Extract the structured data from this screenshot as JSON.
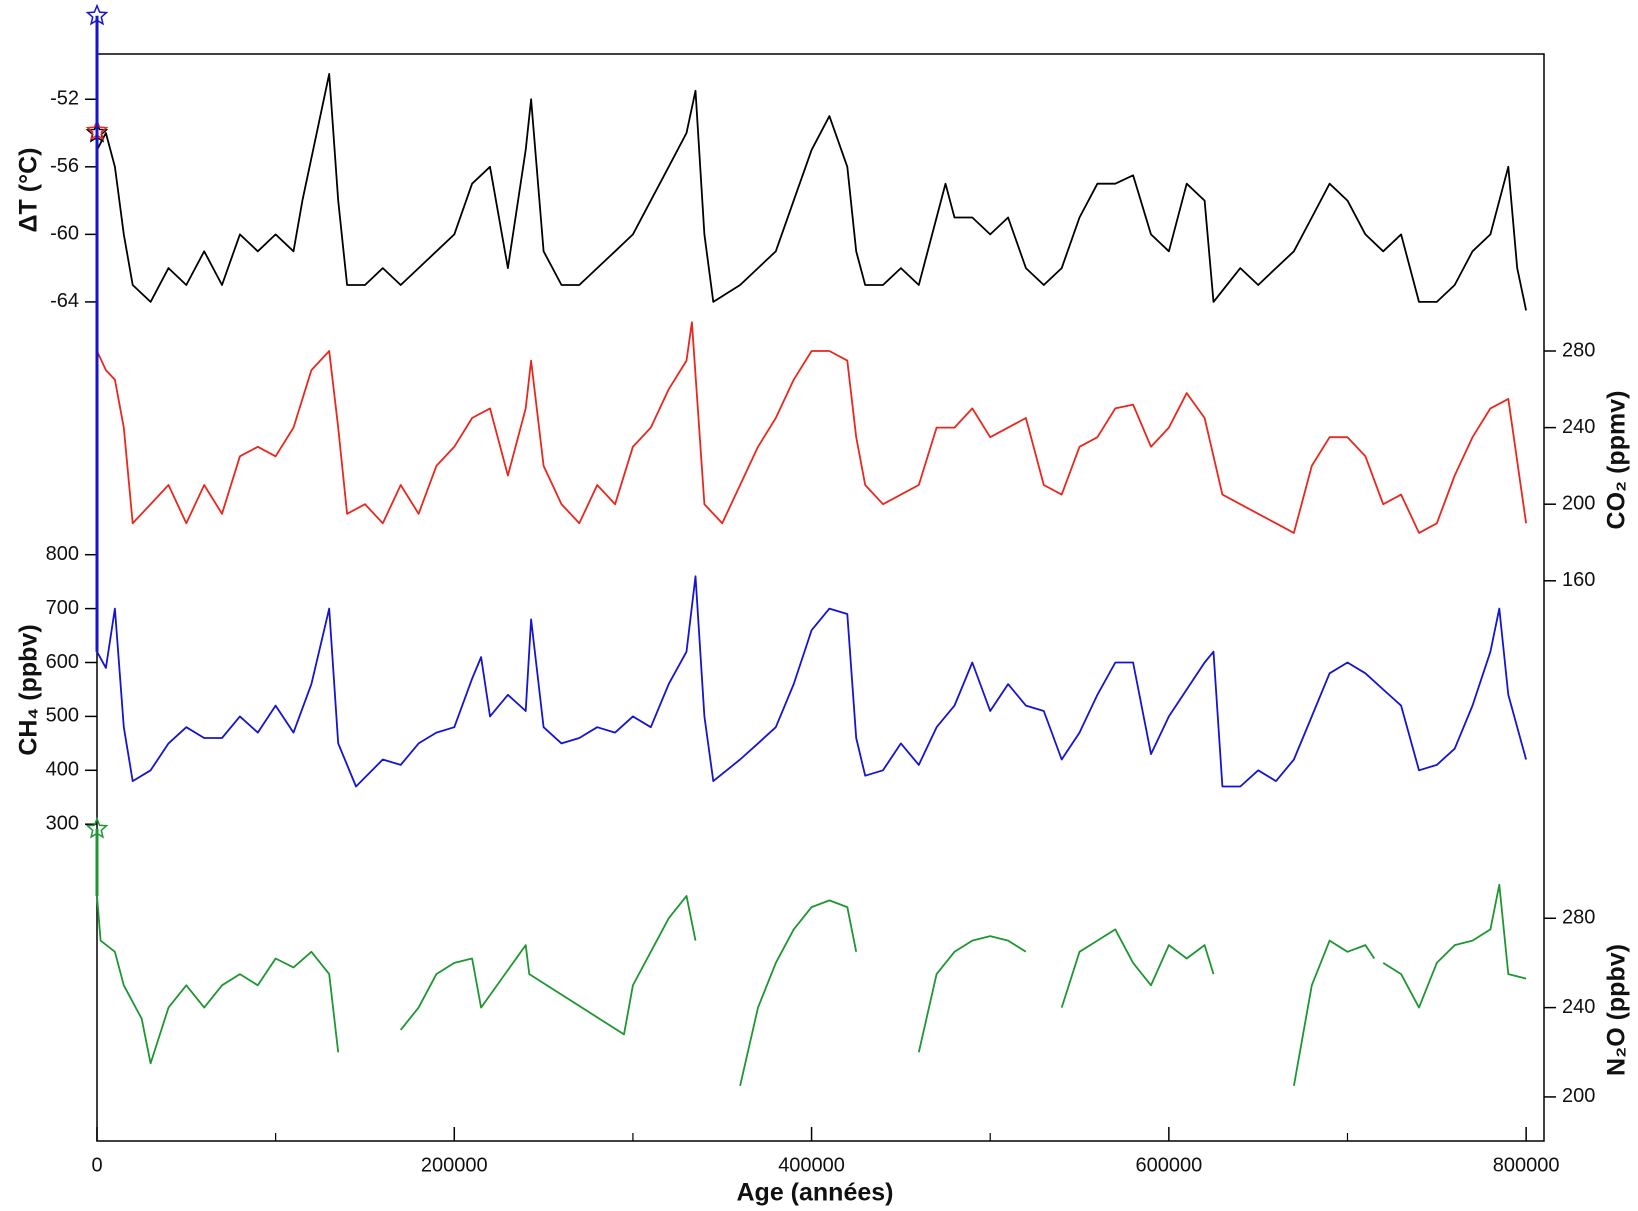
{
  "chart_data": {
    "type": "line",
    "xlabel": "Age (années)",
    "xlim": [
      0,
      810000
    ],
    "xticks": [
      0,
      200000,
      400000,
      600000,
      800000
    ],
    "xminor": [
      100000,
      300000,
      500000,
      700000
    ],
    "panels": [
      {
        "ylabel": "ΔT (°C)",
        "side": "left",
        "color": "#000000",
        "ylim": [
          -66,
          -48
        ],
        "yticks": [
          -52,
          -56,
          -60,
          -64
        ],
        "present": {
          "x": 0,
          "value": -54
        },
        "x": [
          0,
          5000,
          10000,
          15000,
          20000,
          30000,
          40000,
          50000,
          60000,
          70000,
          80000,
          90000,
          100000,
          110000,
          115000,
          125000,
          130000,
          135000,
          140000,
          150000,
          160000,
          170000,
          180000,
          190000,
          200000,
          210000,
          220000,
          230000,
          240000,
          243000,
          250000,
          260000,
          270000,
          280000,
          290000,
          300000,
          310000,
          320000,
          330000,
          335000,
          340000,
          345000,
          360000,
          370000,
          380000,
          390000,
          400000,
          410000,
          420000,
          425000,
          430000,
          440000,
          450000,
          460000,
          470000,
          475000,
          480000,
          490000,
          500000,
          510000,
          520000,
          530000,
          540000,
          550000,
          560000,
          570000,
          580000,
          590000,
          600000,
          610000,
          620000,
          625000,
          640000,
          650000,
          660000,
          670000,
          680000,
          690000,
          700000,
          710000,
          720000,
          730000,
          740000,
          750000,
          760000,
          770000,
          780000,
          790000,
          795000,
          800000
        ],
        "values": [
          -55,
          -54,
          -56,
          -60,
          -63,
          -64,
          -62,
          -63,
          -61,
          -63,
          -60,
          -61,
          -60,
          -61,
          -58,
          -53,
          -50.5,
          -58,
          -63,
          -63,
          -62,
          -63,
          -62,
          -61,
          -60,
          -57,
          -56,
          -62,
          -55,
          -52,
          -61,
          -63,
          -63,
          -62,
          -61,
          -60,
          -58,
          -56,
          -54,
          -51.5,
          -60,
          -64,
          -63,
          -62,
          -61,
          -58,
          -55,
          -53,
          -56,
          -61,
          -63,
          -63,
          -62,
          -63,
          -59,
          -57,
          -59,
          -59,
          -60,
          -59,
          -62,
          -63,
          -62,
          -59,
          -57,
          -57,
          -56.5,
          -60,
          -61,
          -57,
          -58,
          -64,
          -62,
          -63,
          -62,
          -61,
          -59,
          -57,
          -58,
          -60,
          -61,
          -60,
          -64,
          -64,
          -63,
          -61,
          -60,
          -56,
          -62,
          -64.5
        ]
      },
      {
        "ylabel": "CO₂ (ppmv)",
        "side": "right",
        "color": "#e8281e",
        "ylim": [
          160,
          300
        ],
        "yticks": [
          160,
          200,
          240,
          280
        ],
        "present": {
          "x": 0,
          "value": 395
        },
        "x": [
          0,
          5000,
          10000,
          15000,
          20000,
          30000,
          40000,
          50000,
          60000,
          70000,
          80000,
          90000,
          100000,
          110000,
          120000,
          130000,
          135000,
          140000,
          150000,
          160000,
          170000,
          180000,
          190000,
          200000,
          210000,
          220000,
          230000,
          240000,
          243000,
          250000,
          260000,
          270000,
          280000,
          290000,
          300000,
          310000,
          320000,
          330000,
          333000,
          340000,
          350000,
          360000,
          370000,
          380000,
          390000,
          400000,
          410000,
          420000,
          425000,
          430000,
          440000,
          450000,
          460000,
          470000,
          480000,
          490000,
          500000,
          510000,
          520000,
          530000,
          540000,
          550000,
          560000,
          570000,
          580000,
          590000,
          600000,
          610000,
          620000,
          630000,
          640000,
          650000,
          660000,
          670000,
          680000,
          690000,
          700000,
          710000,
          720000,
          730000,
          740000,
          750000,
          760000,
          770000,
          780000,
          790000,
          800000
        ],
        "values": [
          280,
          270,
          265,
          240,
          190,
          200,
          210,
          190,
          210,
          195,
          225,
          230,
          225,
          240,
          270,
          280,
          240,
          195,
          200,
          190,
          210,
          195,
          220,
          230,
          245,
          250,
          215,
          250,
          275,
          220,
          200,
          190,
          210,
          200,
          230,
          240,
          260,
          275,
          295,
          200,
          190,
          210,
          230,
          245,
          265,
          280,
          280,
          275,
          235,
          210,
          200,
          205,
          210,
          240,
          240,
          250,
          235,
          240,
          245,
          210,
          205,
          230,
          235,
          250,
          252,
          230,
          240,
          258,
          245,
          205,
          200,
          195,
          190,
          185,
          220,
          235,
          235,
          225,
          200,
          205,
          185,
          190,
          215,
          235,
          250,
          255,
          190
        ]
      },
      {
        "ylabel": "CH₄ (ppbv)",
        "side": "left",
        "color": "#1414d2",
        "ylim": [
          300,
          800
        ],
        "yticks": [
          300,
          400,
          500,
          600,
          700,
          800
        ],
        "present": {
          "x": 0,
          "value": 1800
        },
        "x": [
          0,
          5000,
          10000,
          15000,
          20000,
          30000,
          40000,
          50000,
          60000,
          70000,
          80000,
          90000,
          100000,
          110000,
          120000,
          130000,
          135000,
          145000,
          160000,
          170000,
          180000,
          190000,
          200000,
          210000,
          215000,
          220000,
          230000,
          240000,
          243000,
          250000,
          260000,
          270000,
          280000,
          290000,
          300000,
          310000,
          320000,
          330000,
          335000,
          340000,
          345000,
          360000,
          370000,
          380000,
          390000,
          400000,
          410000,
          420000,
          425000,
          430000,
          440000,
          450000,
          460000,
          470000,
          480000,
          490000,
          500000,
          510000,
          520000,
          530000,
          540000,
          550000,
          560000,
          570000,
          580000,
          590000,
          600000,
          610000,
          620000,
          625000,
          630000,
          640000,
          650000,
          660000,
          670000,
          680000,
          690000,
          700000,
          710000,
          720000,
          730000,
          740000,
          750000,
          760000,
          770000,
          780000,
          785000,
          790000,
          800000
        ],
        "values": [
          620,
          590,
          700,
          480,
          380,
          400,
          450,
          480,
          460,
          460,
          500,
          470,
          520,
          470,
          560,
          700,
          450,
          370,
          420,
          410,
          450,
          470,
          480,
          570,
          610,
          500,
          540,
          510,
          680,
          480,
          450,
          460,
          480,
          470,
          500,
          480,
          560,
          620,
          760,
          500,
          380,
          420,
          450,
          480,
          560,
          660,
          700,
          690,
          460,
          390,
          400,
          450,
          410,
          480,
          520,
          600,
          510,
          560,
          520,
          510,
          420,
          470,
          540,
          600,
          600,
          430,
          500,
          550,
          600,
          620,
          370,
          370,
          400,
          380,
          420,
          500,
          580,
          600,
          580,
          550,
          520,
          400,
          410,
          440,
          520,
          620,
          700,
          540,
          420
        ]
      },
      {
        "ylabel": "N₂O (ppbv)",
        "side": "right",
        "color": "#1e9632",
        "ylim": [
          180,
          300
        ],
        "yticks": [
          200,
          240,
          280
        ],
        "present": {
          "x": 0,
          "value": 320
        },
        "x": [
          0,
          2000,
          10000,
          15000,
          25000,
          30000,
          40000,
          50000,
          60000,
          70000,
          80000,
          90000,
          100000,
          110000,
          120000,
          130000,
          135000,
          150000,
          170000,
          180000,
          190000,
          200000,
          210000,
          215000,
          240000,
          242000,
          295000,
          300000,
          310000,
          320000,
          330000,
          335000,
          350000,
          360000,
          370000,
          380000,
          390000,
          400000,
          410000,
          420000,
          425000,
          440000,
          460000,
          470000,
          480000,
          490000,
          500000,
          510000,
          520000,
          530000,
          540000,
          550000,
          560000,
          570000,
          580000,
          590000,
          600000,
          610000,
          620000,
          625000,
          650000,
          670000,
          680000,
          690000,
          700000,
          710000,
          715000,
          718000,
          720000,
          730000,
          740000,
          750000,
          760000,
          770000,
          780000,
          785000,
          790000,
          800000
        ],
        "values": [
          290,
          270,
          265,
          250,
          235,
          215,
          240,
          250,
          240,
          250,
          255,
          250,
          262,
          258,
          265,
          255,
          220,
          null,
          230,
          240,
          255,
          260,
          262,
          240,
          268,
          255,
          228,
          250,
          265,
          280,
          290,
          270,
          null,
          205,
          240,
          260,
          275,
          285,
          288,
          285,
          265,
          null,
          220,
          255,
          265,
          270,
          272,
          270,
          265,
          null,
          240,
          265,
          270,
          275,
          260,
          250,
          268,
          262,
          268,
          255,
          null,
          205,
          250,
          270,
          265,
          268,
          262,
          null,
          260,
          255,
          240,
          260,
          268,
          270,
          275,
          295,
          255,
          253
        ]
      }
    ]
  }
}
